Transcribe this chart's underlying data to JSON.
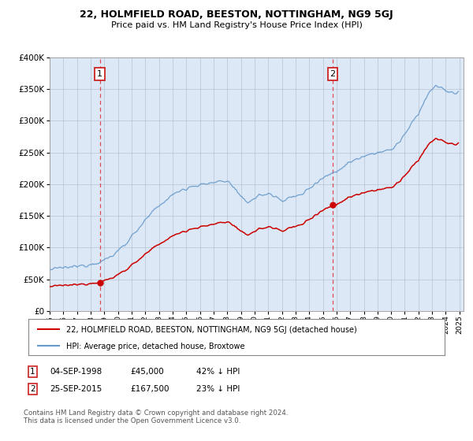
{
  "title": "22, HOLMFIELD ROAD, BEESTON, NOTTINGHAM, NG9 5GJ",
  "subtitle": "Price paid vs. HM Land Registry's House Price Index (HPI)",
  "bg_color": "#ffffff",
  "plot_bg_color": "#dce8f5",
  "red_line_label": "22, HOLMFIELD ROAD, BEESTON, NOTTINGHAM, NG9 5GJ (detached house)",
  "blue_line_label": "HPI: Average price, detached house, Broxtowe",
  "footnote": "Contains HM Land Registry data © Crown copyright and database right 2024.\nThis data is licensed under the Open Government Licence v3.0.",
  "sale1_date": "04-SEP-1998",
  "sale1_price": 45000,
  "sale1_label": "42% ↓ HPI",
  "sale1_x": 1998.67,
  "sale2_date": "25-SEP-2015",
  "sale2_price": 167500,
  "sale2_label": "23% ↓ HPI",
  "sale2_x": 2015.72,
  "xmin": 1995.0,
  "xmax": 2025.3,
  "ymin": 0,
  "ymax": 400000,
  "yticks": [
    0,
    50000,
    100000,
    150000,
    200000,
    250000,
    300000,
    350000,
    400000
  ],
  "red_color": "#cc0000",
  "blue_color": "#6699cc",
  "dashed_color": "#dd3333",
  "grid_color": "#aabbcc",
  "border_color": "#cc2222"
}
